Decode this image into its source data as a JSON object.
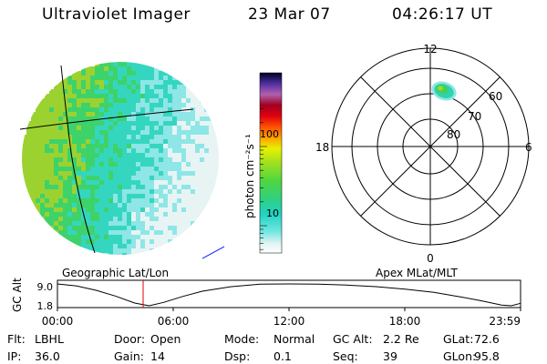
{
  "header": {
    "instrument": "Ultraviolet Imager",
    "date": "23 Mar 07",
    "time": "04:26:17 UT"
  },
  "earth_image": {
    "caption": "Geographic Lat/Lon",
    "palette": [
      "#9cd230",
      "#3ed26a",
      "#35d6bf",
      "#8ee6e6",
      "#e8f4f4"
    ]
  },
  "colorbar": {
    "unit_label": "photon cm⁻²s⁻¹",
    "tick_labels": [
      "100",
      "10"
    ],
    "scale": "log"
  },
  "polar_plot": {
    "caption": "Apex MLat/MLT",
    "mlt_labels": {
      "top": "12",
      "bottom": "0",
      "left": "18",
      "right": "6"
    },
    "mlat_labels": [
      "60",
      "70",
      "80"
    ]
  },
  "chart_data": {
    "type": "line",
    "title": "",
    "ylabel": "GC Alt",
    "y_tick_labels": [
      "9.0",
      "1.8"
    ],
    "ylim": [
      1.8,
      9.0
    ],
    "x_tick_labels": [
      "00:00",
      "06:00",
      "12:00",
      "18:00",
      "23:59"
    ],
    "xlim": [
      "00:00",
      "23:59"
    ],
    "current_time": "04:26:17",
    "series": [
      {
        "x": [
          "00:00",
          "01:00",
          "02:00",
          "03:00",
          "04:00",
          "04:45",
          "05:30",
          "06:30",
          "07:30",
          "09:00",
          "10:30",
          "12:00",
          "13:30",
          "15:00",
          "16:30",
          "18:00",
          "19:30",
          "21:00",
          "22:00",
          "23:00",
          "23:30",
          "23:59"
        ],
        "values": [
          9.0,
          8.3,
          6.9,
          5.0,
          2.7,
          1.8,
          2.9,
          4.9,
          6.6,
          8.1,
          8.9,
          9.0,
          8.9,
          8.6,
          8.1,
          7.3,
          6.2,
          4.6,
          3.4,
          2.0,
          1.8,
          2.6
        ]
      }
    ]
  },
  "footer": [
    [
      {
        "key": "Flt:",
        "value": "LBHL"
      },
      {
        "key": "Door:",
        "value": "Open"
      },
      {
        "key": "Mode:",
        "value": "Normal"
      },
      {
        "key": "GC Alt:",
        "value": "2.2 Re"
      },
      {
        "key": "GLat:",
        "value": "72.6"
      }
    ],
    [
      {
        "key": "IP:",
        "value": "36.0"
      },
      {
        "key": "Gain:",
        "value": "14"
      },
      {
        "key": "Dsp:",
        "value": "0.1"
      },
      {
        "key": "Seq:",
        "value": "39"
      },
      {
        "key": "GLon:",
        "value": "95.8"
      }
    ]
  ]
}
